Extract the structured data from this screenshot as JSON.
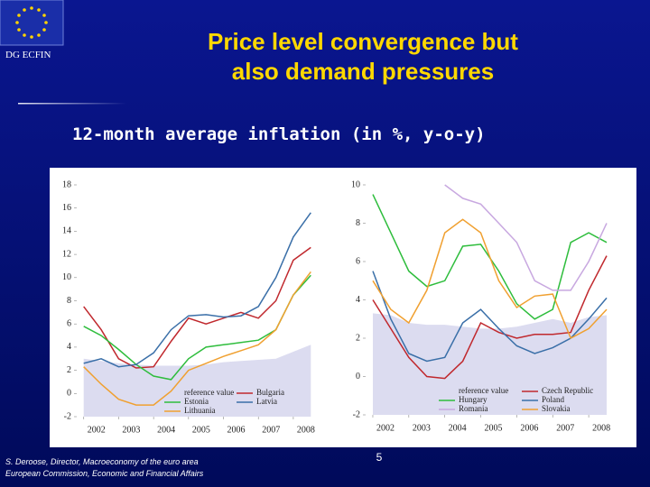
{
  "slide": {
    "org": "DG ECFIN",
    "title": [
      "Price level convergence but",
      "also demand pressures"
    ],
    "subtitle": "12-month average inflation (in %, y-o-y)",
    "footer": [
      "S. Deroose, Director, Macroeconomy of the euro area",
      "European Commission, Economic and Financial Affairs"
    ],
    "page": "5"
  },
  "chart_data": [
    {
      "type": "line",
      "x": [
        2002,
        2002.5,
        2003,
        2003.5,
        2004,
        2004.5,
        2005,
        2005.5,
        2006,
        2006.5,
        2007,
        2007.5,
        2008,
        2008.5
      ],
      "xlim": [
        2001.8,
        2008.7
      ],
      "xticks": [
        2002,
        2003,
        2004,
        2005,
        2006,
        2007,
        2008
      ],
      "ylim": [
        -2,
        18
      ],
      "yticks": [
        -2,
        0,
        2,
        4,
        6,
        8,
        10,
        12,
        14,
        16,
        18
      ],
      "legend": "lower right",
      "series": [
        {
          "name": "reference value",
          "type": "area",
          "color": "#dcdcf0",
          "values": [
            3.0,
            2.8,
            2.6,
            2.5,
            2.4,
            2.4,
            2.4,
            2.5,
            2.7,
            2.8,
            2.9,
            3.0,
            3.6,
            4.2
          ]
        },
        {
          "name": "Bulgaria",
          "color": "#c0282d",
          "values": [
            7.5,
            5.5,
            3.0,
            2.2,
            2.3,
            4.5,
            6.5,
            6.0,
            6.5,
            7.0,
            6.5,
            8.0,
            11.5,
            12.6
          ]
        },
        {
          "name": "Estonia",
          "color": "#2ebd3c",
          "values": [
            5.8,
            5.0,
            3.8,
            2.5,
            1.5,
            1.2,
            3.0,
            4.0,
            4.2,
            4.4,
            4.6,
            5.5,
            8.5,
            10.2
          ]
        },
        {
          "name": "Latvia",
          "color": "#3a6fa8",
          "values": [
            2.6,
            3.0,
            2.3,
            2.5,
            3.5,
            5.5,
            6.7,
            6.8,
            6.6,
            6.7,
            7.5,
            10.0,
            13.5,
            15.6
          ]
        },
        {
          "name": "Lithuania",
          "color": "#f0a030",
          "values": [
            2.3,
            0.8,
            -0.5,
            -1.0,
            -1.0,
            0.2,
            2.0,
            2.6,
            3.2,
            3.7,
            4.2,
            5.5,
            8.5,
            10.5
          ]
        }
      ]
    },
    {
      "type": "line",
      "x": [
        2002,
        2002.5,
        2003,
        2003.5,
        2004,
        2004.5,
        2005,
        2005.5,
        2006,
        2006.5,
        2007,
        2007.5,
        2008,
        2008.5
      ],
      "xlim": [
        2001.8,
        2008.7
      ],
      "xticks": [
        2002,
        2003,
        2004,
        2005,
        2006,
        2007,
        2008
      ],
      "ylim": [
        -2,
        10
      ],
      "yticks": [
        -2,
        0,
        2,
        4,
        6,
        8,
        10
      ],
      "legend": "lower right",
      "series": [
        {
          "name": "reference value",
          "type": "area",
          "color": "#dcdcf0",
          "values": [
            3.3,
            3.2,
            2.8,
            2.7,
            2.7,
            2.6,
            2.5,
            2.5,
            2.6,
            2.8,
            3.0,
            2.8,
            3.1,
            3.2
          ]
        },
        {
          "name": "Czech Republic",
          "color": "#c0282d",
          "values": [
            4.0,
            2.5,
            1.0,
            0.0,
            -0.1,
            0.8,
            2.8,
            2.3,
            2.0,
            2.2,
            2.2,
            2.3,
            4.5,
            6.3
          ]
        },
        {
          "name": "Hungary",
          "color": "#2ebd3c",
          "values": [
            9.5,
            7.5,
            5.5,
            4.7,
            5.0,
            6.8,
            6.9,
            5.5,
            3.8,
            3.0,
            3.5,
            7.0,
            7.5,
            7.0
          ]
        },
        {
          "name": "Poland",
          "color": "#3a6fa8",
          "values": [
            5.5,
            3.0,
            1.2,
            0.8,
            1.0,
            2.8,
            3.5,
            2.5,
            1.6,
            1.2,
            1.5,
            2.0,
            3.0,
            4.1
          ]
        },
        {
          "name": "Romania",
          "color": "#c8a8e0",
          "values": [
            null,
            null,
            null,
            null,
            10.0,
            9.3,
            9.0,
            8.0,
            7.0,
            5.0,
            4.5,
            4.5,
            6.0,
            8.0
          ]
        },
        {
          "name": "Slovakia",
          "color": "#f0a030",
          "values": [
            5.0,
            3.5,
            2.8,
            4.5,
            7.5,
            8.2,
            7.5,
            5.0,
            3.6,
            4.2,
            4.3,
            2.0,
            2.5,
            3.5
          ]
        }
      ]
    }
  ]
}
